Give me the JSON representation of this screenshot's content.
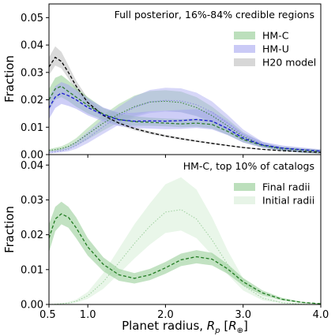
{
  "figure": {
    "xlabel": "Planet radius, ",
    "xlabel_math": "R",
    "xlabel_sub": "p",
    "xlabel_unit_open": " [",
    "xlabel_unit_sym": "R",
    "xlabel_unit_sub": "⊕",
    "xlabel_unit_close": "]",
    "xlim": [
      0.5,
      4.0
    ],
    "xticks": [
      0.5,
      1.0,
      2.0,
      3.0,
      4.0
    ],
    "xticklabels": [
      "0.5",
      "1.0",
      "2.0",
      "3.0",
      "4.0"
    ]
  },
  "chart_data": [
    {
      "type": "area",
      "title": "Full posterior, 16%-84% credible regions",
      "ylabel": "Fraction",
      "ylim": [
        0,
        0.055
      ],
      "yticks": [
        0.0,
        0.01,
        0.02,
        0.03,
        0.04,
        0.05
      ],
      "yticklabels": [
        "0.00",
        "0.01",
        "0.02",
        "0.03",
        "0.04",
        "0.05"
      ],
      "legend_position": "upper-right",
      "x": [
        0.5,
        0.58,
        0.66,
        0.75,
        0.85,
        1.0,
        1.2,
        1.4,
        1.6,
        1.8,
        2.0,
        2.2,
        2.4,
        2.6,
        2.8,
        3.0,
        3.25,
        3.5,
        3.75,
        4.0
      ],
      "series": [
        {
          "name": "HM-C",
          "color": "#8fca8f",
          "line_color": "#2e7d2e",
          "median": [
            0.02,
            0.024,
            0.025,
            0.023,
            0.021,
            0.018,
            0.0148,
            0.0128,
            0.012,
            0.0118,
            0.0115,
            0.0112,
            0.0115,
            0.011,
            0.0085,
            0.0055,
            0.0033,
            0.0023,
            0.0017,
            0.0012
          ],
          "lower": [
            0.016,
            0.02,
            0.021,
            0.0195,
            0.0175,
            0.015,
            0.0127,
            0.011,
            0.0105,
            0.0105,
            0.0103,
            0.01,
            0.0102,
            0.0096,
            0.0072,
            0.0045,
            0.0026,
            0.0017,
            0.0011,
            0.0007
          ],
          "upper": [
            0.024,
            0.028,
            0.029,
            0.027,
            0.0245,
            0.021,
            0.017,
            0.015,
            0.014,
            0.0135,
            0.0132,
            0.013,
            0.0132,
            0.0125,
            0.0098,
            0.0065,
            0.004,
            0.0029,
            0.0023,
            0.0018
          ]
        },
        {
          "name": "HM-U",
          "color": "#a6a6f0",
          "line_color": "#1515d0",
          "median": [
            0.017,
            0.021,
            0.0225,
            0.0215,
            0.02,
            0.0172,
            0.0145,
            0.0127,
            0.0122,
            0.0123,
            0.0122,
            0.0124,
            0.0128,
            0.0122,
            0.0095,
            0.006,
            0.0035,
            0.0024,
            0.0018,
            0.0013
          ],
          "lower": [
            0.013,
            0.017,
            0.0185,
            0.0178,
            0.0167,
            0.0143,
            0.0121,
            0.0104,
            0.0097,
            0.0095,
            0.0093,
            0.0094,
            0.0097,
            0.0092,
            0.0071,
            0.0044,
            0.0025,
            0.0016,
            0.0011,
            0.0007
          ],
          "upper": [
            0.021,
            0.025,
            0.0265,
            0.0255,
            0.0235,
            0.0205,
            0.0172,
            0.0153,
            0.0153,
            0.0158,
            0.016,
            0.0163,
            0.0166,
            0.0158,
            0.0122,
            0.0078,
            0.0047,
            0.0033,
            0.0026,
            0.0019
          ]
        },
        {
          "name": "H20 model",
          "color": "#bcbcbc",
          "line_color": "#000000",
          "median": [
            0.032,
            0.0355,
            0.034,
            0.03,
            0.025,
            0.019,
            0.0143,
            0.0115,
            0.0095,
            0.008,
            0.0068,
            0.0058,
            0.0049,
            0.0041,
            0.0033,
            0.0026,
            0.0019,
            0.0014,
            0.0011,
            0.0008
          ],
          "lower": [
            0.029,
            0.0325,
            0.0315,
            0.0278,
            0.0232,
            0.0178,
            0.0134,
            0.0108,
            0.0089,
            0.0075,
            0.0064,
            0.0054,
            0.0046,
            0.0038,
            0.0031,
            0.0024,
            0.0017,
            0.0013,
            0.001,
            0.0007
          ],
          "upper": [
            0.0355,
            0.0395,
            0.0375,
            0.0325,
            0.027,
            0.0205,
            0.0153,
            0.0122,
            0.0101,
            0.0085,
            0.0072,
            0.0062,
            0.0052,
            0.0044,
            0.0035,
            0.0028,
            0.0021,
            0.0016,
            0.0012,
            0.0009
          ]
        }
      ],
      "unlabeled_series": [
        {
          "color": "#8fca8f",
          "line_color": "#2e7d2e",
          "median": [
            0.0015,
            0.0018,
            0.0022,
            0.003,
            0.0045,
            0.0075,
            0.0115,
            0.0148,
            0.0175,
            0.0192,
            0.0195,
            0.019,
            0.0172,
            0.0142,
            0.0105,
            0.0066,
            0.0034,
            0.0018,
            0.001,
            0.0006
          ],
          "lower": [
            0.001,
            0.0012,
            0.0015,
            0.002,
            0.0032,
            0.0055,
            0.0088,
            0.0118,
            0.0142,
            0.0157,
            0.016,
            0.0155,
            0.014,
            0.0115,
            0.0085,
            0.0052,
            0.0026,
            0.0013,
            0.0007,
            0.0004
          ],
          "upper": [
            0.002,
            0.0025,
            0.003,
            0.0042,
            0.006,
            0.0098,
            0.0145,
            0.0185,
            0.0215,
            0.0232,
            0.0235,
            0.023,
            0.021,
            0.0175,
            0.013,
            0.0082,
            0.0044,
            0.0024,
            0.0014,
            0.0009
          ]
        },
        {
          "color": "#a6a6f0",
          "line_color": "#8a8ae0",
          "median": [
            0.0008,
            0.001,
            0.0014,
            0.002,
            0.0033,
            0.006,
            0.0102,
            0.014,
            0.0172,
            0.0192,
            0.0198,
            0.0196,
            0.0182,
            0.0155,
            0.0115,
            0.0072,
            0.0036,
            0.0019,
            0.001,
            0.0006
          ],
          "lower": [
            0.0004,
            0.0006,
            0.0008,
            0.0012,
            0.0021,
            0.0042,
            0.0076,
            0.0109,
            0.0136,
            0.0152,
            0.0157,
            0.0155,
            0.0142,
            0.012,
            0.0088,
            0.0054,
            0.0026,
            0.0013,
            0.0007,
            0.0004
          ],
          "upper": [
            0.0013,
            0.0016,
            0.0021,
            0.003,
            0.0048,
            0.0083,
            0.0132,
            0.0175,
            0.0212,
            0.0236,
            0.0244,
            0.0242,
            0.0226,
            0.0194,
            0.0145,
            0.0092,
            0.0047,
            0.0025,
            0.0014,
            0.0009
          ]
        }
      ]
    },
    {
      "type": "area",
      "title": "HM-C, top 10% of catalogs",
      "ylabel": "Fraction",
      "ylim": [
        0,
        0.043
      ],
      "yticks": [
        0.0,
        0.01,
        0.02,
        0.03,
        0.04
      ],
      "yticklabels": [
        "0.00",
        "0.01",
        "0.02",
        "0.03",
        "0.04"
      ],
      "legend_position": "upper-right",
      "x": [
        0.5,
        0.58,
        0.66,
        0.75,
        0.85,
        1.0,
        1.2,
        1.4,
        1.6,
        1.8,
        2.0,
        2.2,
        2.4,
        2.6,
        2.8,
        3.0,
        3.25,
        3.5,
        3.75,
        4.0
      ],
      "series": [
        {
          "name": "Final radii",
          "color": "#8fca8f",
          "line_color": "#1f7a1f",
          "median": [
            0.019,
            0.0245,
            0.026,
            0.025,
            0.022,
            0.0165,
            0.0115,
            0.0085,
            0.0075,
            0.0085,
            0.0105,
            0.0128,
            0.0137,
            0.013,
            0.0102,
            0.0065,
            0.0033,
            0.0015,
            0.0006,
            0.0002
          ],
          "lower": [
            0.015,
            0.021,
            0.023,
            0.022,
            0.019,
            0.014,
            0.0095,
            0.0068,
            0.006,
            0.007,
            0.0088,
            0.011,
            0.0118,
            0.0112,
            0.0088,
            0.0054,
            0.0026,
            0.0011,
            0.0004,
            0.0001
          ],
          "upper": [
            0.023,
            0.028,
            0.0295,
            0.028,
            0.025,
            0.019,
            0.0135,
            0.0102,
            0.009,
            0.0102,
            0.0122,
            0.0146,
            0.0156,
            0.0148,
            0.0116,
            0.0076,
            0.004,
            0.0019,
            0.0008,
            0.0003
          ]
        },
        {
          "name": "Initial radii",
          "color": "#cfeacf",
          "line_color": "#9fd09f",
          "median": [
            0.0,
            0.0001,
            0.0002,
            0.0004,
            0.0009,
            0.0025,
            0.0065,
            0.012,
            0.0175,
            0.0225,
            0.0265,
            0.0272,
            0.0245,
            0.0185,
            0.0115,
            0.0055,
            0.0018,
            0.0005,
            0.0001,
            0.0
          ],
          "lower": [
            0.0,
            0.0,
            0.0001,
            0.0002,
            0.0005,
            0.0016,
            0.0045,
            0.0088,
            0.0132,
            0.0172,
            0.0205,
            0.0212,
            0.019,
            0.0142,
            0.0086,
            0.004,
            0.0012,
            0.0003,
            0.0001,
            0.0
          ],
          "upper": [
            0.0001,
            0.0002,
            0.0004,
            0.0007,
            0.0014,
            0.0036,
            0.009,
            0.016,
            0.023,
            0.029,
            0.0345,
            0.0365,
            0.033,
            0.025,
            0.0155,
            0.0075,
            0.0026,
            0.0008,
            0.0002,
            0.0
          ]
        }
      ]
    }
  ]
}
